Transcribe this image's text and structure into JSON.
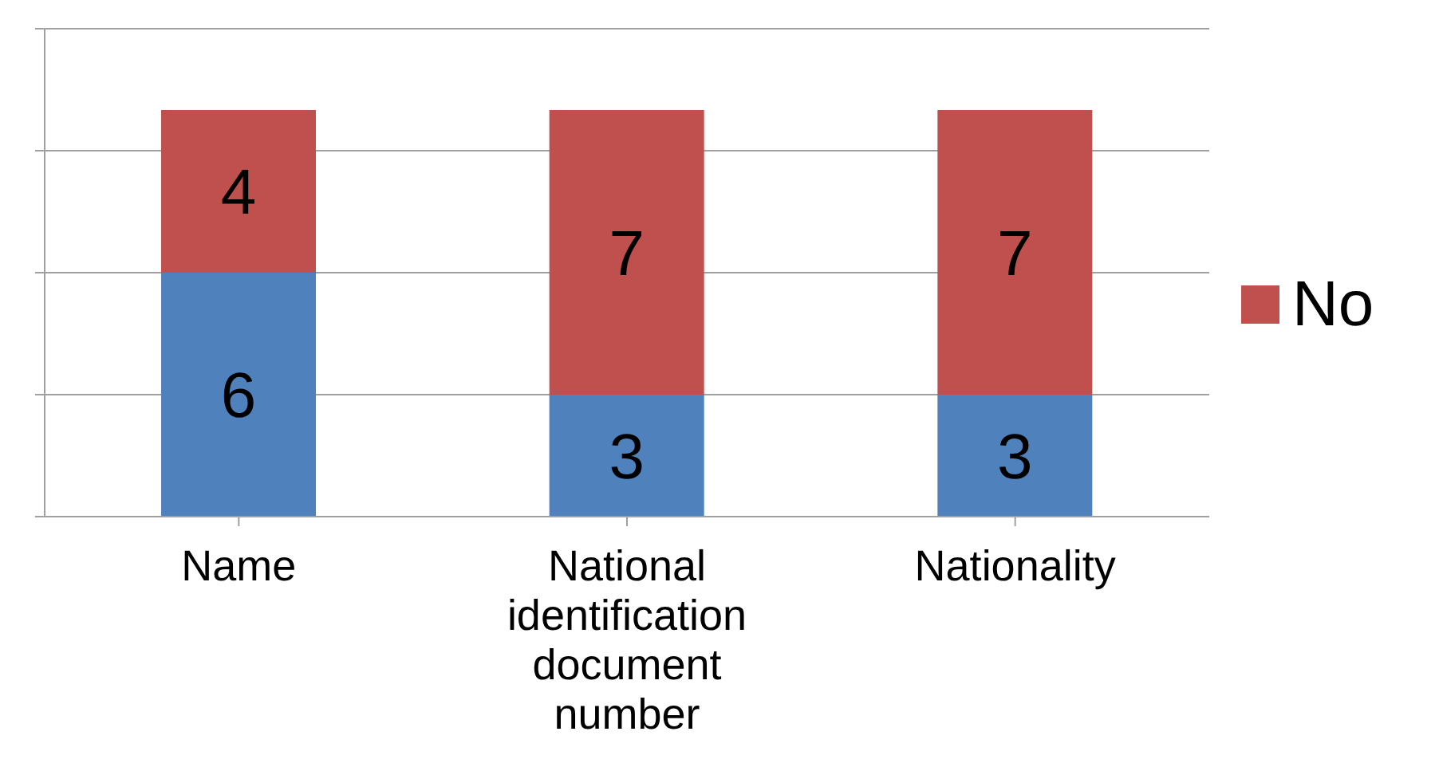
{
  "chart_data": {
    "type": "bar",
    "stacked": true,
    "categories": [
      "Name",
      "National identification document number",
      "Nationality"
    ],
    "series": [
      {
        "color": "#4f81bd",
        "values": [
          6,
          3,
          3
        ]
      },
      {
        "name": "No",
        "color": "#c0504d",
        "values": [
          4,
          7,
          7
        ]
      }
    ],
    "grid": "y",
    "tick_labels": "x",
    "data_labels": true,
    "legend": "right"
  }
}
